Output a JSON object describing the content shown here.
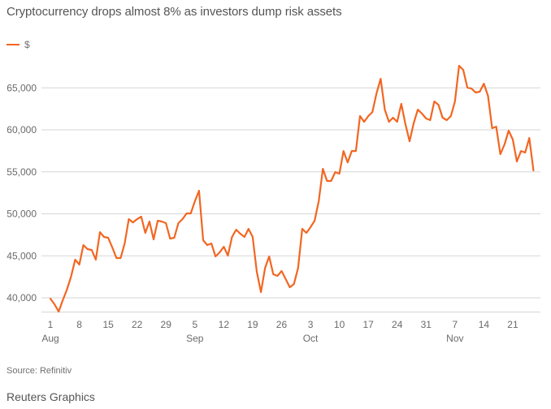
{
  "title": "Cryptocurrency drops almost 8% as investors dump risk assets",
  "legend": {
    "label": "$",
    "color": "#f26622"
  },
  "source": "Source: Refinitiv",
  "credit": "Reuters Graphics",
  "chart_data": {
    "type": "line",
    "title": "Cryptocurrency drops almost 8% as investors dump risk assets",
    "xlabel": "",
    "ylabel": "",
    "ylim": [
      37500,
      68500
    ],
    "y_ticks": [
      40000,
      45000,
      50000,
      55000,
      60000,
      65000
    ],
    "y_tick_labels": [
      "40,000",
      "45,000",
      "50,000",
      "55,000",
      "60,000",
      "65,000"
    ],
    "x_start_date": "Aug 1",
    "x_range_days": [
      -0.8,
      120
    ],
    "x_ticks": [
      {
        "day": 0,
        "label": "1",
        "month": "Aug"
      },
      {
        "day": 7,
        "label": "8",
        "month": ""
      },
      {
        "day": 14,
        "label": "15",
        "month": ""
      },
      {
        "day": 21,
        "label": "22",
        "month": ""
      },
      {
        "day": 28,
        "label": "29",
        "month": ""
      },
      {
        "day": 35,
        "label": "5",
        "month": "Sep"
      },
      {
        "day": 42,
        "label": "12",
        "month": ""
      },
      {
        "day": 49,
        "label": "19",
        "month": ""
      },
      {
        "day": 56,
        "label": "26",
        "month": ""
      },
      {
        "day": 63,
        "label": "3",
        "month": "Oct"
      },
      {
        "day": 70,
        "label": "10",
        "month": ""
      },
      {
        "day": 77,
        "label": "17",
        "month": ""
      },
      {
        "day": 84,
        "label": "24",
        "month": ""
      },
      {
        "day": 91,
        "label": "31",
        "month": ""
      },
      {
        "day": 98,
        "label": "7",
        "month": "Nov"
      },
      {
        "day": 105,
        "label": "14",
        "month": ""
      },
      {
        "day": 112,
        "label": "21",
        "month": ""
      }
    ],
    "grid": "horizontal",
    "legend_position": "top-left",
    "series": [
      {
        "name": "$",
        "color": "#f26622",
        "values": [
          39900,
          39230,
          38360,
          39710,
          40970,
          42510,
          44540,
          43960,
          46280,
          45800,
          45700,
          44540,
          47820,
          47250,
          47150,
          45990,
          44730,
          44730,
          46470,
          49370,
          48980,
          49370,
          49660,
          47730,
          49080,
          46960,
          49180,
          49080,
          48890,
          47050,
          47150,
          48890,
          49370,
          50050,
          50050,
          51500,
          52750,
          46860,
          46280,
          46470,
          44930,
          45410,
          46090,
          45020,
          47250,
          48110,
          47630,
          47250,
          48210,
          47250,
          43090,
          40680,
          43570,
          44930,
          42800,
          42610,
          43190,
          42220,
          41260,
          41640,
          43570,
          48210,
          47730,
          48400,
          49180,
          51500,
          55360,
          53910,
          53910,
          54970,
          54780,
          57480,
          56130,
          57480,
          57480,
          61640,
          60960,
          61640,
          62120,
          64340,
          66080,
          62410,
          60960,
          61450,
          60960,
          63090,
          60670,
          58640,
          60770,
          62410,
          61930,
          61350,
          61160,
          63380,
          62990,
          61450,
          61160,
          61640,
          63380,
          67630,
          67140,
          65020,
          64920,
          64440,
          64540,
          65500,
          64050,
          60190,
          60380,
          57100,
          58260,
          59900,
          58840,
          56230,
          57480,
          57290,
          59030,
          55170
        ]
      }
    ]
  }
}
